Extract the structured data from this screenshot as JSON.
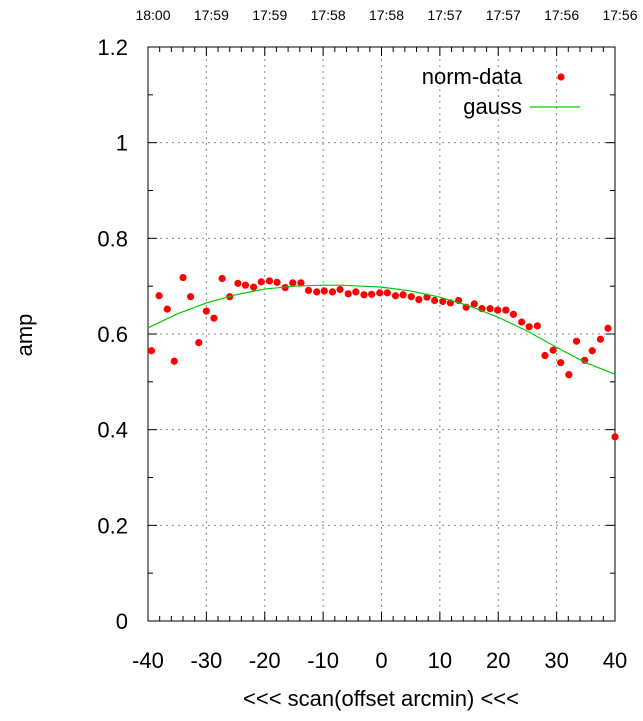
{
  "chart_data": {
    "type": "scatter",
    "title": "",
    "xlabel": "<<< scan(offset arcmin) <<<",
    "ylabel": "amp",
    "xlim": [
      -40,
      40
    ],
    "ylim": [
      0,
      1.2
    ],
    "grid": true,
    "legend_position": "top-right",
    "x_ticks": [
      "-40",
      "-30",
      "-20",
      "-10",
      "0",
      "10",
      "20",
      "30",
      "40"
    ],
    "y_ticks": [
      "0",
      "0.2",
      "0.4",
      "0.6",
      "0.8",
      "1",
      "1.2"
    ],
    "top_time_ticks": [
      "18:00",
      "17:59",
      "17:59",
      "17:58",
      "17:58",
      "17:57",
      "17:57",
      "17:56",
      "17:56"
    ],
    "series": [
      {
        "name": "norm-data",
        "kind": "points",
        "color": "#ff0000",
        "x": [
          -39.4,
          -38.1,
          -36.7,
          -35.5,
          -34.0,
          -32.7,
          -31.3,
          -30.0,
          -28.7,
          -27.3,
          -26.0,
          -24.6,
          -23.3,
          -21.9,
          -20.6,
          -19.2,
          -17.9,
          -16.5,
          -15.2,
          -13.8,
          -12.5,
          -11.1,
          -9.8,
          -8.4,
          -7.1,
          -5.7,
          -4.4,
          -3.0,
          -1.7,
          -0.3,
          1.0,
          2.4,
          3.7,
          5.1,
          6.4,
          7.8,
          9.1,
          10.5,
          11.8,
          13.2,
          14.5,
          15.9,
          17.2,
          18.6,
          19.9,
          21.3,
          22.6,
          24.0,
          25.3,
          26.7,
          28.0,
          29.4,
          30.7,
          32.1,
          33.4,
          34.8,
          36.1,
          37.5,
          38.8,
          40.0
        ],
        "y": [
          0.565,
          0.68,
          0.652,
          0.543,
          0.718,
          0.678,
          0.582,
          0.648,
          0.633,
          0.716,
          0.678,
          0.706,
          0.702,
          0.698,
          0.709,
          0.711,
          0.708,
          0.697,
          0.707,
          0.707,
          0.691,
          0.688,
          0.69,
          0.688,
          0.693,
          0.684,
          0.688,
          0.682,
          0.683,
          0.686,
          0.686,
          0.68,
          0.682,
          0.678,
          0.672,
          0.677,
          0.67,
          0.668,
          0.665,
          0.67,
          0.656,
          0.663,
          0.653,
          0.653,
          0.65,
          0.65,
          0.641,
          0.625,
          0.615,
          0.617,
          0.555,
          0.566,
          0.54,
          0.515,
          0.585,
          0.545,
          0.565,
          0.589,
          0.612,
          0.385
        ]
      },
      {
        "name": "gauss",
        "kind": "line",
        "color": "#00cc00",
        "x": [
          -40,
          -35,
          -30,
          -25,
          -20,
          -15,
          -10,
          -7,
          -5,
          0,
          5,
          10,
          15,
          20,
          25,
          30,
          35,
          40
        ],
        "y": [
          0.613,
          0.642,
          0.665,
          0.682,
          0.694,
          0.7,
          0.702,
          0.702,
          0.701,
          0.698,
          0.69,
          0.677,
          0.659,
          0.635,
          0.606,
          0.572,
          0.54,
          0.516
        ]
      }
    ]
  }
}
